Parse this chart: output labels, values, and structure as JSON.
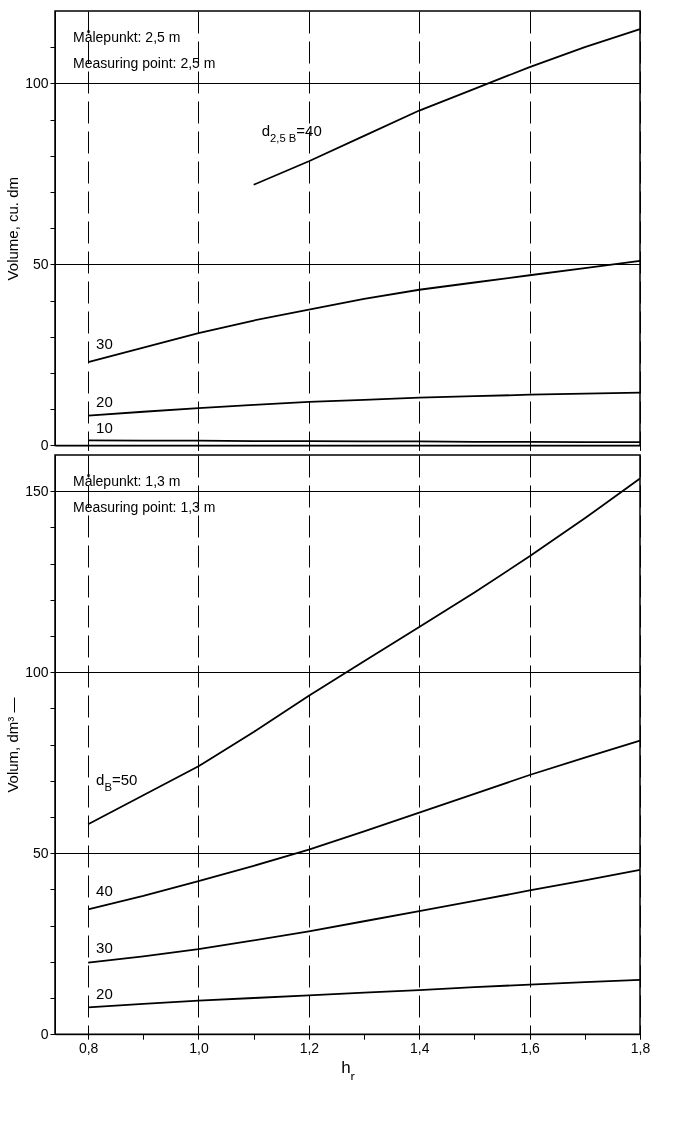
{
  "chart_data": [
    {
      "type": "line",
      "ylabel": "Volume, cu. dm",
      "annotations": [
        "Målepunkt: 2,5 m",
        "Measuring point: 2,5 m"
      ],
      "xlim": [
        0.74,
        1.8
      ],
      "ylim": [
        0,
        120
      ],
      "xticks": [
        {
          "value": 0.8,
          "label": null
        },
        {
          "value": 1.0,
          "label": null
        },
        {
          "value": 1.2,
          "label": null
        },
        {
          "value": 1.4,
          "label": null
        },
        {
          "value": 1.6,
          "label": null
        },
        {
          "value": 1.8,
          "label": null
        }
      ],
      "yticks": [
        0,
        {
          "value": 10,
          "label": null
        },
        {
          "value": 20,
          "label": null
        },
        {
          "value": 30,
          "label": null
        },
        {
          "value": 40,
          "label": null
        },
        50,
        {
          "value": 60,
          "label": null
        },
        {
          "value": 70,
          "label": null
        },
        {
          "value": 80,
          "label": null
        },
        {
          "value": 90,
          "label": null
        },
        100,
        {
          "value": 110,
          "label": null
        }
      ],
      "tick_labels": "y",
      "grid": true,
      "line_style": "solid",
      "x": [
        0.8,
        0.9,
        1.0,
        1.1,
        1.2,
        1.3,
        1.4,
        1.5,
        1.6,
        1.7,
        1.8
      ],
      "series": [
        {
          "name": "d$_{2,5 B}$=40",
          "color": "#000000",
          "values": [
            null,
            null,
            null,
            72,
            78.5,
            85.5,
            92.5,
            98.5,
            104.5,
            110,
            115
          ]
        },
        {
          "name": "30",
          "color": "#000000",
          "values": [
            23,
            27,
            31,
            34.5,
            37.5,
            40.5,
            43,
            45,
            47,
            49,
            51
          ]
        },
        {
          "name": "20",
          "color": "#000000",
          "values": [
            8.2,
            9.3,
            10.3,
            11.2,
            12,
            12.6,
            13.2,
            13.6,
            14,
            14.3,
            14.6
          ]
        },
        {
          "name": "10",
          "color": "#000000",
          "values": [
            1.4,
            1.3,
            1.3,
            1.2,
            1.2,
            1.1,
            1.1,
            1.0,
            1.0,
            0.9,
            0.9
          ]
        }
      ]
    },
    {
      "type": "line",
      "xlabel": "h$_{r}$",
      "ylabel": "Volum, dm³ —",
      "annotations": [
        "Målepunkt: 1,3 m",
        "Measuring point: 1,3 m"
      ],
      "xlim": [
        0.74,
        1.8
      ],
      "ylim": [
        0,
        160
      ],
      "xticks": [
        {
          "value": 0.8,
          "label": "0,8"
        },
        {
          "value": 0.9,
          "label": null
        },
        {
          "value": 1.0,
          "label": "1,0"
        },
        {
          "value": 1.1,
          "label": null
        },
        {
          "value": 1.2,
          "label": "1,2"
        },
        {
          "value": 1.3,
          "label": null
        },
        {
          "value": 1.4,
          "label": "1,4"
        },
        {
          "value": 1.5,
          "label": null
        },
        {
          "value": 1.6,
          "label": "1,6"
        },
        {
          "value": 1.7,
          "label": null
        },
        {
          "value": 1.8,
          "label": "1,8"
        }
      ],
      "yticks": [
        0,
        {
          "value": 10,
          "label": null
        },
        {
          "value": 20,
          "label": null
        },
        {
          "value": 30,
          "label": null
        },
        {
          "value": 40,
          "label": null
        },
        50,
        {
          "value": 60,
          "label": null
        },
        {
          "value": 70,
          "label": null
        },
        {
          "value": 80,
          "label": null
        },
        {
          "value": 90,
          "label": null
        },
        100,
        {
          "value": 110,
          "label": null
        },
        {
          "value": 120,
          "label": null
        },
        {
          "value": 130,
          "label": null
        },
        {
          "value": 140,
          "label": null
        },
        150
      ],
      "grid": true,
      "line_style": "solid",
      "x": [
        0.8,
        0.9,
        1.0,
        1.1,
        1.2,
        1.3,
        1.4,
        1.5,
        1.6,
        1.7,
        1.8
      ],
      "series": [
        {
          "name": "d$_{B}$=50",
          "color": "#000000",
          "values": [
            58,
            66,
            74,
            83.5,
            93.5,
            103,
            112.5,
            122,
            132,
            142.5,
            153.5
          ]
        },
        {
          "name": "40",
          "color": "#000000",
          "values": [
            34.5,
            38.2,
            42.3,
            46.5,
            51,
            56,
            61.2,
            66.4,
            71.6,
            76.4,
            81.1
          ]
        },
        {
          "name": "30",
          "color": "#000000",
          "values": [
            19.8,
            21.5,
            23.5,
            25.9,
            28.4,
            31.2,
            34,
            36.8,
            39.7,
            42.5,
            45.4
          ]
        },
        {
          "name": "20",
          "color": "#000000",
          "values": [
            7.4,
            8.4,
            9.3,
            10,
            10.7,
            11.5,
            12.2,
            13,
            13.7,
            14.4,
            15
          ]
        }
      ]
    }
  ]
}
